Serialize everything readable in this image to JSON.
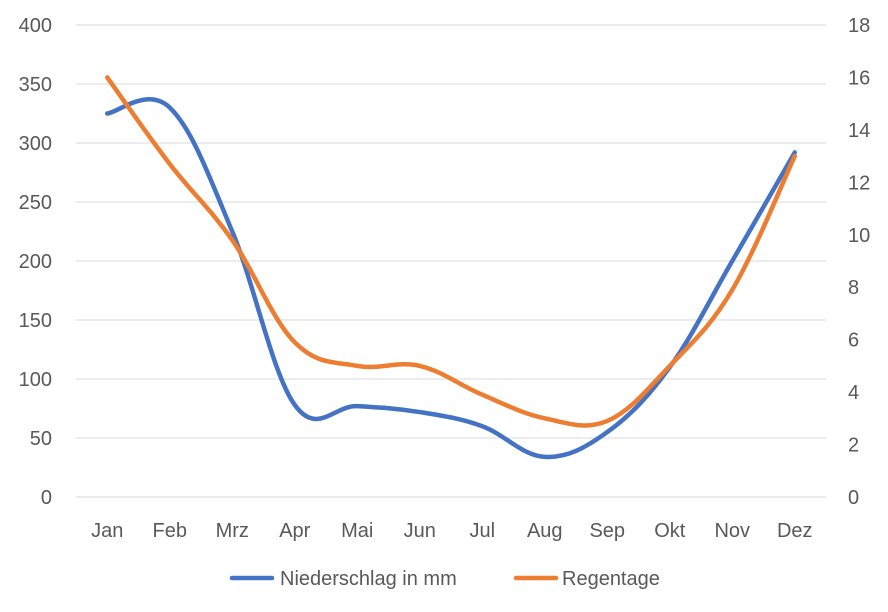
{
  "chart_data": {
    "type": "line",
    "categories": [
      "Jan",
      "Feb",
      "Mrz",
      "Apr",
      "Mai",
      "Jun",
      "Jul",
      "Aug",
      "Sep",
      "Okt",
      "Nov",
      "Dez"
    ],
    "series": [
      {
        "name": "Niederschlag in mm",
        "axis": "left",
        "color": "#4472C4",
        "values": [
          325,
          330,
          225,
          78,
          77,
          72,
          60,
          34,
          55,
          110,
          200,
          292
        ]
      },
      {
        "name": "Regentage",
        "axis": "right",
        "color": "#ED7D31",
        "values": [
          16,
          12.7,
          9.8,
          5.9,
          5.0,
          5.0,
          3.9,
          3.0,
          2.9,
          5.0,
          7.9,
          13.0
        ]
      }
    ],
    "y_left": {
      "range": [
        0,
        400
      ],
      "ticks": [
        "0",
        "50",
        "100",
        "150",
        "200",
        "250",
        "300",
        "350",
        "400"
      ]
    },
    "y_right": {
      "range": [
        0,
        18
      ],
      "ticks": [
        "0",
        "2",
        "4",
        "6",
        "8",
        "10",
        "12",
        "14",
        "16",
        "18"
      ]
    },
    "grid": true,
    "legend_position": "bottom",
    "gridline_color": "#d9d9d9"
  }
}
